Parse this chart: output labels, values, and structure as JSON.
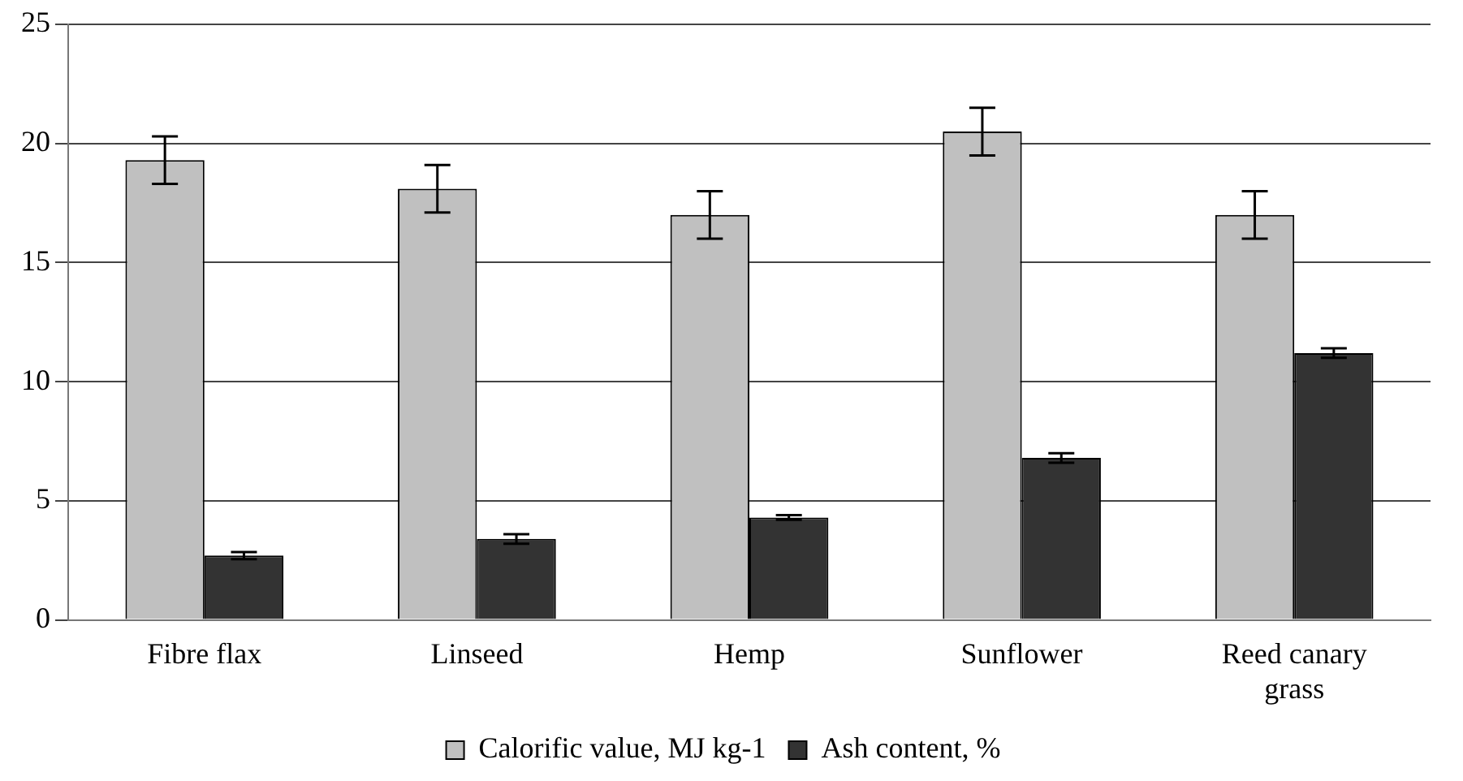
{
  "chart_data": {
    "type": "bar",
    "categories": [
      "Fibre flax",
      "Linseed",
      "Hemp",
      "Sunflower",
      "Reed canary grass"
    ],
    "series": [
      {
        "name": "Calorific value, MJ kg-1",
        "color": "#c0c0c0",
        "values": [
          19.3,
          18.1,
          17.0,
          20.5,
          17.0
        ],
        "errors": [
          1.0,
          1.0,
          1.0,
          1.0,
          1.0
        ]
      },
      {
        "name": "Ash content, %",
        "color": "#333333",
        "values": [
          2.7,
          3.4,
          4.3,
          6.8,
          11.2
        ],
        "errors": [
          0.15,
          0.2,
          0.1,
          0.2,
          0.2
        ]
      }
    ],
    "ylim": [
      0,
      25
    ],
    "yticks": [
      0,
      5,
      10,
      15,
      20,
      25
    ],
    "grid": "y",
    "legend": "bottom"
  }
}
